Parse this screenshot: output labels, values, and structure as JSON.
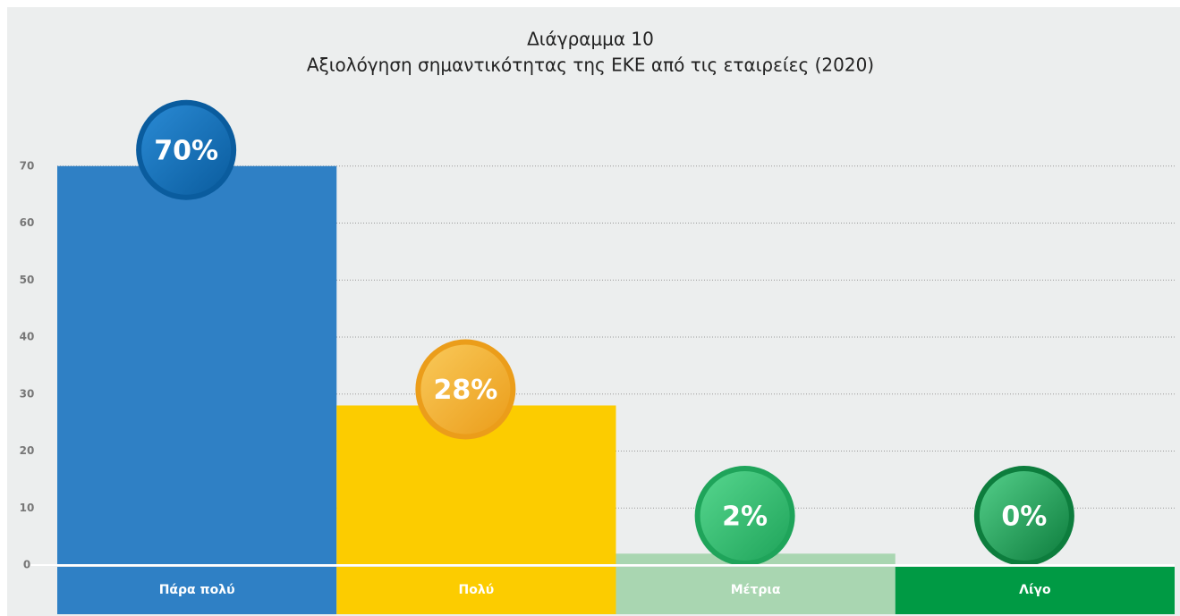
{
  "chart_data": {
    "type": "bar",
    "title": "Διάγραμμα 10",
    "subtitle": "Αξιολόγηση σημαντικότητας της ΕΚΕ από τις εταιρείες (2020)",
    "categories": [
      "Πάρα πολύ",
      "Πολύ",
      "Μέτρια",
      "Λίγο"
    ],
    "values": [
      70,
      28,
      2,
      0
    ],
    "value_labels": [
      "70%",
      "28%",
      "2%",
      "0%"
    ],
    "colors": [
      "#2f80c5",
      "#fccc00",
      "#a9d6b1",
      "#009a44"
    ],
    "label_colors": [
      [
        "#2a8ad4",
        "#0a5c9e"
      ],
      [
        "#f9c95a",
        "#eb9d1a"
      ],
      [
        "#56d68e",
        "#1fa45a"
      ],
      [
        "#54cf8a",
        "#0d7d3d"
      ]
    ],
    "ylim": [
      0,
      80
    ],
    "yticks": [
      0,
      10,
      20,
      30,
      40,
      50,
      60,
      70
    ],
    "grid": true
  }
}
